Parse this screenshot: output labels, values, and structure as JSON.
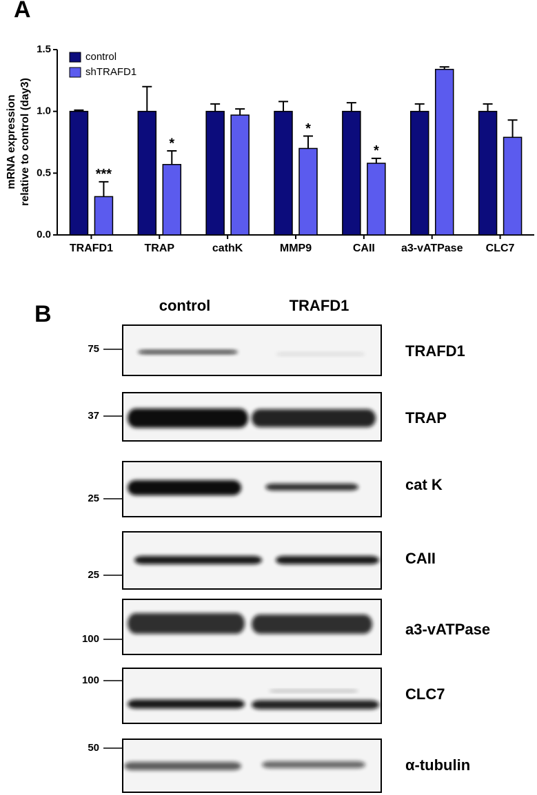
{
  "panel_labels": [
    "A",
    "B"
  ],
  "chart_data": {
    "type": "bar",
    "ylabel": [
      "mRNA expression",
      "relative to control (day3)"
    ],
    "categories": [
      "TRAFD1",
      "TRAP",
      "cathK",
      "MMP9",
      "CAII",
      "a3-vATPase",
      "CLC7"
    ],
    "series": [
      {
        "name": "control",
        "color": "#0c0c7c",
        "values": [
          1.0,
          1.0,
          1.0,
          1.0,
          1.0,
          1.0,
          1.0
        ],
        "errors": [
          0.01,
          0.2,
          0.06,
          0.08,
          0.07,
          0.06,
          0.06
        ]
      },
      {
        "name": "shTRAFD1",
        "color": "#5b5bee",
        "values": [
          0.31,
          0.57,
          0.97,
          0.7,
          0.58,
          1.34,
          0.79
        ],
        "errors": [
          0.12,
          0.11,
          0.05,
          0.1,
          0.04,
          0.02,
          0.14
        ],
        "annotations": [
          "***",
          "*",
          null,
          "*",
          "*",
          null,
          null
        ]
      }
    ],
    "ylim": [
      0,
      1.5
    ],
    "yticks": [
      {
        "value": 0,
        "label": "0.0"
      },
      0.5,
      {
        "value": 1,
        "label": "1.0"
      },
      1.5
    ],
    "legend": "top-left"
  },
  "blot": {
    "lanes": [
      "control",
      "TRAFD1"
    ],
    "rows": [
      {
        "protein": "TRAFD1",
        "marker": 75
      },
      {
        "protein": "TRAP",
        "marker": 37
      },
      {
        "protein": "cat K",
        "marker": 25
      },
      {
        "protein": "CAII",
        "marker": 25
      },
      {
        "protein": "a3-vATPase",
        "marker": 100
      },
      {
        "protein": "CLC7",
        "marker": 100
      },
      {
        "protein": "α-tubulin",
        "marker": 50
      }
    ]
  }
}
